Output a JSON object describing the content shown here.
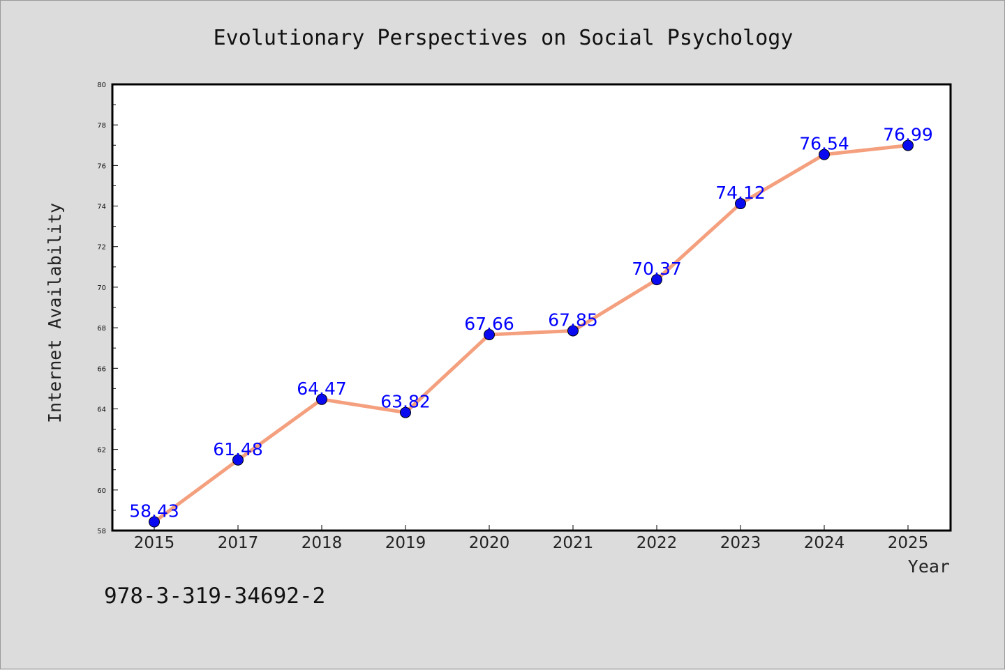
{
  "figure": {
    "background": "#dcdcdc",
    "plot_background": "#ffffff",
    "isbn": "978-3-319-34692-2"
  },
  "chart_data": {
    "type": "line",
    "title": "Evolutionary Perspectives on Social Psychology",
    "xlabel": "Year",
    "ylabel": "Internet Availability",
    "categories": [
      "2015",
      "2017",
      "2018",
      "2019",
      "2020",
      "2021",
      "2022",
      "2023",
      "2024",
      "2025"
    ],
    "values": [
      58.43,
      61.48,
      64.47,
      63.82,
      67.66,
      67.85,
      70.37,
      74.12,
      76.54,
      76.99
    ],
    "data_labels": [
      "58.43",
      "61.48",
      "64.47",
      "63.82",
      "67.66",
      "67.85",
      "70.37",
      "74.12",
      "76.54",
      "76.99"
    ],
    "ylim": [
      58,
      80
    ],
    "yticks": [
      58,
      60,
      62,
      64,
      66,
      68,
      70,
      72,
      74,
      76,
      78,
      80
    ],
    "grid": false,
    "legend": "none",
    "line_color": "#f4a07e",
    "marker_color": "#0a0af0",
    "label_color": "#0000ff"
  }
}
